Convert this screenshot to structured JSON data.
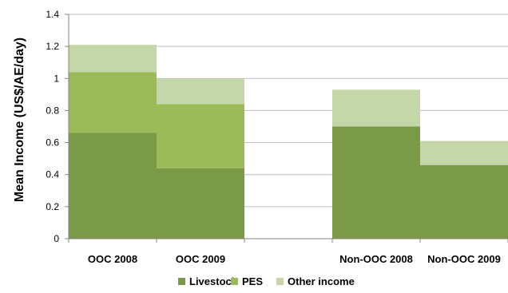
{
  "chart_data": {
    "type": "bar",
    "stacked": true,
    "title": "",
    "xlabel": "",
    "ylabel": "Mean Income (US$/AE/day)",
    "ylim": [
      0,
      1.4
    ],
    "yticks": [
      "0",
      "0.2",
      "0.4",
      "0.6",
      "0.8",
      "1",
      "1.2",
      "1.4"
    ],
    "grid": "horizontal",
    "legend_position": "bottom",
    "categories": [
      "OOC 2008",
      "OOC 2009",
      "",
      "Non-OOC 2008",
      "Non-OOC 2009"
    ],
    "series": [
      {
        "name": "Livestock",
        "color": "#7b9a47",
        "values": [
          0.66,
          0.44,
          0,
          0.7,
          0.46
        ]
      },
      {
        "name": "PES",
        "color": "#9bbb59",
        "values": [
          0.38,
          0.4,
          0,
          0,
          0
        ]
      },
      {
        "name": "Other income",
        "color": "#c5d6a8",
        "values": [
          0.17,
          0.16,
          0,
          0.23,
          0.15
        ]
      }
    ]
  }
}
